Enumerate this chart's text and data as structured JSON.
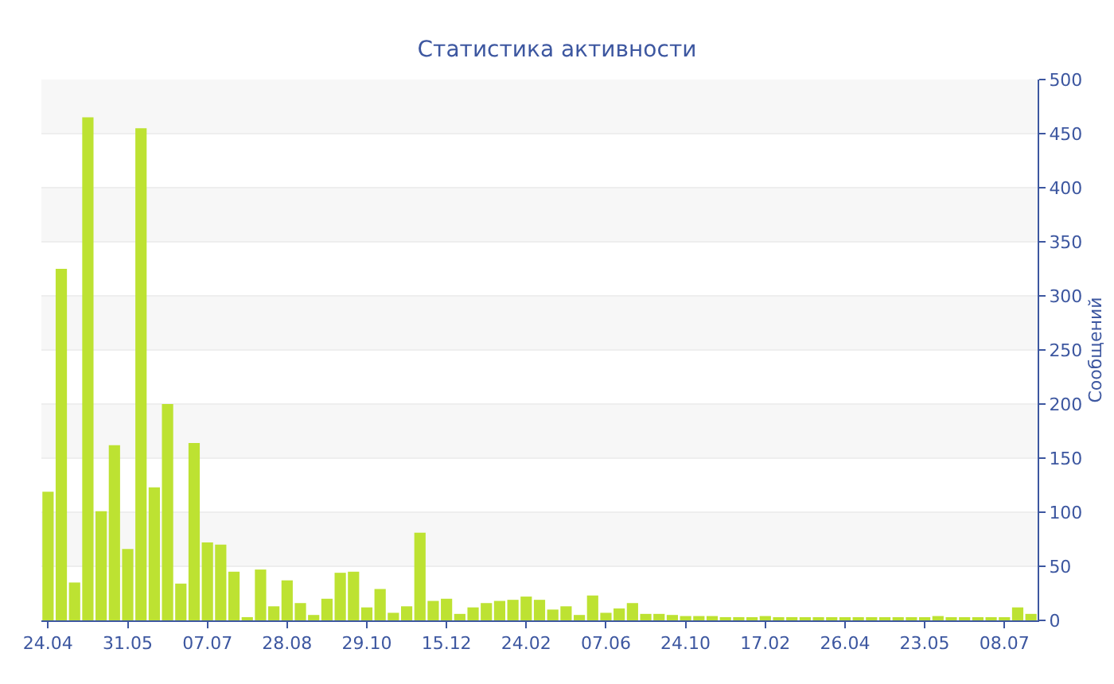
{
  "chart_data": {
    "type": "bar",
    "title": "Статистика активности",
    "ylabel": "Сообщений",
    "categories": [
      "24.04",
      null,
      null,
      null,
      null,
      null,
      "31.05",
      null,
      null,
      null,
      null,
      null,
      "07.07",
      null,
      null,
      null,
      null,
      null,
      "28.08",
      null,
      null,
      null,
      null,
      null,
      "29.10",
      null,
      null,
      null,
      null,
      null,
      "15.12",
      null,
      null,
      null,
      null,
      null,
      "24.02",
      null,
      null,
      null,
      null,
      null,
      "07.06",
      null,
      null,
      null,
      null,
      null,
      "24.10",
      null,
      null,
      null,
      null,
      null,
      "17.02",
      null,
      null,
      null,
      null,
      null,
      "26.04",
      null,
      null,
      null,
      null,
      null,
      "23.05",
      null,
      null,
      null,
      null,
      null,
      "08.07",
      null,
      null
    ],
    "values": [
      119,
      325,
      35,
      465,
      101,
      162,
      66,
      455,
      123,
      200,
      34,
      164,
      72,
      70,
      45,
      3,
      47,
      13,
      37,
      16,
      5,
      20,
      44,
      45,
      12,
      29,
      7,
      13,
      81,
      18,
      20,
      6,
      12,
      16,
      18,
      19,
      22,
      19,
      10,
      13,
      5,
      23,
      7,
      11,
      16,
      6,
      6,
      5,
      4,
      4,
      4,
      3,
      3,
      2,
      4,
      2,
      3,
      2,
      2,
      2,
      2,
      2,
      2,
      2,
      2,
      2,
      2,
      4,
      2,
      2,
      2,
      2,
      2,
      12,
      6
    ],
    "color": "#bde232",
    "ylim": [
      0,
      500
    ],
    "yticks": [
      0,
      50,
      100,
      150,
      200,
      250,
      300,
      350,
      400,
      450,
      500
    ],
    "grid": "y",
    "legend": false
  }
}
